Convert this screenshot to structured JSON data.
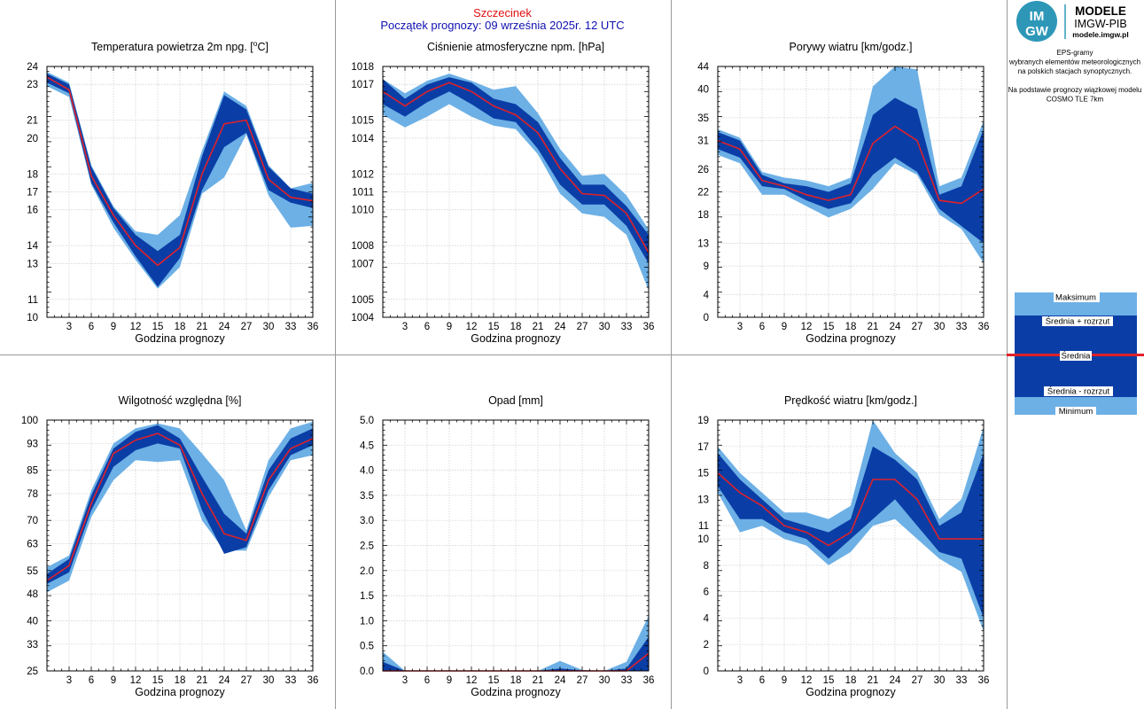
{
  "header": {
    "station": "Szczecinek",
    "forecast_start": "Początek prognozy: 09 września 2025r. 12 UTC"
  },
  "logo": {
    "badge_top": "IM",
    "badge_bottom": "GW",
    "line1": "MODELE",
    "line2": "IMGW-PIB",
    "line3": "modele.imgw.pl"
  },
  "info": {
    "lines": [
      "EPS-gramy",
      "wybranych elementów meteorologicznych",
      "na polskich stacjach  synoptycznych.",
      "",
      "Na podstawie prognozy wiązkowej modelu",
      "COSMO TLE 7km"
    ]
  },
  "legend": {
    "max": "Maksimum",
    "mean_plus": "Średnia + rozrzut",
    "mean": "Średnia",
    "mean_minus": "Średnia - rozrzut",
    "min": "Minimum"
  },
  "colors": {
    "extreme_band": "#6cb0e6",
    "spread_band": "#0a3ea6",
    "mean_line": "#e0202a",
    "grid": "#cccccc",
    "divider": "#999999"
  },
  "chart_data": [
    {
      "type": "area",
      "title": "Temperatura powietrza 2m npg. [°C]",
      "title_html": [
        "Temperatura powietrza 2m npg. [",
        "o",
        "C]"
      ],
      "xlabel": "Godzina prognozy",
      "ylabel": "",
      "ylim": [
        10,
        24
      ],
      "yticks": [
        10,
        11,
        13,
        14,
        16,
        17,
        18,
        20,
        21,
        23,
        24
      ],
      "x": [
        0,
        3,
        6,
        9,
        12,
        15,
        18,
        21,
        24,
        27,
        30,
        33,
        36
      ],
      "xticks": [
        3,
        6,
        9,
        12,
        15,
        18,
        21,
        24,
        27,
        30,
        33,
        36
      ],
      "max": [
        23.7,
        23.1,
        18.5,
        16.2,
        14.8,
        14.6,
        15.7,
        19.3,
        22.6,
        21.8,
        18.5,
        17.2,
        17.5
      ],
      "mean_plus": [
        23.6,
        23.0,
        18.4,
        16.1,
        14.6,
        13.7,
        14.6,
        19.0,
        22.4,
        21.6,
        18.4,
        17.2,
        16.9
      ],
      "mean": [
        23.4,
        22.7,
        17.9,
        15.7,
        14.0,
        12.9,
        13.9,
        18.0,
        20.8,
        21.0,
        17.7,
        16.7,
        16.5
      ],
      "mean_minus": [
        23.1,
        22.5,
        17.5,
        15.3,
        13.4,
        11.7,
        13.3,
        17.1,
        19.5,
        20.3,
        17.1,
        16.4,
        16.1
      ],
      "min": [
        22.9,
        22.3,
        17.4,
        15.0,
        13.2,
        11.6,
        12.8,
        16.9,
        17.8,
        20.2,
        16.8,
        15.0,
        15.1
      ]
    },
    {
      "type": "area",
      "title": "Ciśnienie atmosferyczne npm. [hPa]",
      "xlabel": "Godzina prognozy",
      "ylabel": "",
      "ylim": [
        1004,
        1018
      ],
      "yticks": [
        1004,
        1005,
        1007,
        1008,
        1010,
        1011,
        1012,
        1014,
        1015,
        1017,
        1018
      ],
      "x": [
        0,
        3,
        6,
        9,
        12,
        15,
        18,
        21,
        24,
        27,
        30,
        33,
        36
      ],
      "xticks": [
        3,
        6,
        9,
        12,
        15,
        18,
        21,
        24,
        27,
        30,
        33,
        36
      ],
      "max": [
        1017.3,
        1016.5,
        1017.2,
        1017.6,
        1017.2,
        1016.7,
        1016.9,
        1015.4,
        1013.4,
        1011.9,
        1012.0,
        1010.8,
        1008.9
      ],
      "mean_plus": [
        1017.3,
        1016.2,
        1017.0,
        1017.4,
        1017.1,
        1016.2,
        1015.9,
        1014.9,
        1012.9,
        1011.4,
        1011.4,
        1010.2,
        1008.6
      ],
      "mean": [
        1016.6,
        1015.8,
        1016.6,
        1017.1,
        1016.6,
        1015.8,
        1015.3,
        1014.3,
        1012.3,
        1010.9,
        1010.8,
        1009.8,
        1007.6
      ],
      "mean_minus": [
        1015.9,
        1015.2,
        1016.0,
        1016.6,
        1015.9,
        1015.1,
        1014.9,
        1013.4,
        1011.4,
        1010.3,
        1010.3,
        1009.1,
        1007.0
      ],
      "min": [
        1015.3,
        1014.6,
        1015.2,
        1015.9,
        1015.2,
        1014.7,
        1014.5,
        1013.1,
        1010.9,
        1009.8,
        1009.6,
        1008.6,
        1005.5
      ]
    },
    {
      "type": "area",
      "title": "Porywy wiatru [km/godz.]",
      "xlabel": "Godzina prognozy",
      "ylabel": "",
      "ylim": [
        0,
        44
      ],
      "yticks": [
        0,
        4,
        9,
        13,
        18,
        22,
        26,
        31,
        35,
        40,
        44
      ],
      "x": [
        0,
        3,
        6,
        9,
        12,
        15,
        18,
        21,
        24,
        27,
        30,
        33,
        36
      ],
      "xticks": [
        3,
        6,
        9,
        12,
        15,
        18,
        21,
        24,
        27,
        30,
        33,
        36
      ],
      "max": [
        33.0,
        31.5,
        25.5,
        24.5,
        24.0,
        23.0,
        24.5,
        40.5,
        44.0,
        43.5,
        23.0,
        24.5,
        34.5
      ],
      "mean_plus": [
        32.5,
        31.0,
        25.0,
        23.5,
        23.0,
        22.0,
        23.5,
        35.5,
        38.5,
        36.5,
        21.5,
        23.0,
        33.0
      ],
      "mean": [
        31.0,
        29.5,
        24.0,
        23.0,
        21.5,
        20.5,
        21.5,
        30.5,
        33.5,
        31.0,
        20.5,
        20.0,
        22.5
      ],
      "mean_minus": [
        29.5,
        28.0,
        23.0,
        22.5,
        20.5,
        19.0,
        20.0,
        25.0,
        28.0,
        25.5,
        19.0,
        16.0,
        13.0
      ],
      "min": [
        28.5,
        27.0,
        21.5,
        21.5,
        19.5,
        17.5,
        19.0,
        22.5,
        27.0,
        25.0,
        18.0,
        15.5,
        9.5
      ]
    },
    {
      "type": "area",
      "title": "Wilgotność względna [%]",
      "xlabel": "Godzina prognozy",
      "ylabel": "",
      "ylim": [
        25,
        100
      ],
      "yticks": [
        25,
        33,
        40,
        48,
        55,
        63,
        70,
        78,
        85,
        93,
        100
      ],
      "x": [
        0,
        3,
        6,
        9,
        12,
        15,
        18,
        21,
        24,
        27,
        30,
        33,
        36
      ],
      "xticks": [
        3,
        6,
        9,
        12,
        15,
        18,
        21,
        24,
        27,
        30,
        33,
        36
      ],
      "max": [
        56.0,
        59.5,
        79.0,
        93.0,
        97.5,
        99.0,
        97.5,
        90.0,
        82.0,
        67.0,
        88.0,
        97.5,
        99.5
      ],
      "mean_plus": [
        54.0,
        58.5,
        77.5,
        91.5,
        96.5,
        98.5,
        94.5,
        83.0,
        72.0,
        66.0,
        85.0,
        94.5,
        97.5
      ],
      "mean": [
        52.0,
        56.5,
        75.0,
        90.0,
        94.0,
        96.0,
        92.5,
        78.0,
        66.0,
        64.0,
        82.0,
        91.5,
        94.5
      ],
      "mean_minus": [
        51.0,
        54.5,
        73.0,
        86.0,
        91.0,
        93.0,
        91.5,
        73.0,
        60.0,
        62.0,
        79.0,
        89.5,
        92.5
      ],
      "min": [
        48.5,
        52.0,
        71.0,
        82.0,
        88.0,
        87.5,
        88.0,
        70.0,
        61.0,
        61.0,
        77.0,
        88.0,
        89.5
      ]
    },
    {
      "type": "area",
      "title": "Opad [mm]",
      "xlabel": "Godzina prognozy",
      "ylabel": "",
      "ylim": [
        0,
        5
      ],
      "yticks": [
        0.0,
        0.5,
        1.0,
        1.5,
        2.0,
        2.5,
        3.0,
        3.5,
        4.0,
        4.5,
        5.0
      ],
      "x": [
        0,
        3,
        6,
        9,
        12,
        15,
        18,
        21,
        24,
        27,
        30,
        33,
        36
      ],
      "xticks": [
        3,
        6,
        9,
        12,
        15,
        18,
        21,
        24,
        27,
        30,
        33,
        36
      ],
      "max": [
        0.38,
        0.0,
        0.0,
        0.0,
        0.0,
        0.0,
        0.0,
        0.0,
        0.2,
        0.02,
        0.0,
        0.18,
        1.1
      ],
      "mean_plus": [
        0.18,
        0.0,
        0.0,
        0.0,
        0.0,
        0.0,
        0.0,
        0.0,
        0.05,
        0.01,
        0.0,
        0.05,
        0.68
      ],
      "mean": [
        0.0,
        0.0,
        0.0,
        0.0,
        0.0,
        0.0,
        0.0,
        0.0,
        0.0,
        0.0,
        0.0,
        0.0,
        0.35
      ],
      "mean_minus": [
        0.0,
        0.0,
        0.0,
        0.0,
        0.0,
        0.0,
        0.0,
        0.0,
        0.0,
        0.0,
        0.0,
        0.0,
        0.0
      ],
      "min": [
        0.0,
        0.0,
        0.0,
        0.0,
        0.0,
        0.0,
        0.0,
        0.0,
        0.0,
        0.0,
        0.0,
        0.0,
        0.0
      ]
    },
    {
      "type": "area",
      "title": "Prędkość wiatru [km/godz.]",
      "xlabel": "Godzina prognozy",
      "ylabel": "",
      "ylim": [
        0,
        19
      ],
      "yticks": [
        0,
        2,
        4,
        6,
        8,
        10,
        11,
        13,
        15,
        17,
        19
      ],
      "x": [
        0,
        3,
        6,
        9,
        12,
        15,
        18,
        21,
        24,
        27,
        30,
        33,
        36
      ],
      "xticks": [
        3,
        6,
        9,
        12,
        15,
        18,
        21,
        24,
        27,
        30,
        33,
        36
      ],
      "max": [
        17.0,
        15.0,
        13.5,
        12.0,
        12.0,
        11.5,
        12.5,
        19.0,
        16.5,
        15.0,
        11.5,
        13.0,
        18.5
      ],
      "mean_plus": [
        16.5,
        14.5,
        13.0,
        11.5,
        11.0,
        10.5,
        11.5,
        17.0,
        16.0,
        14.5,
        11.0,
        12.0,
        16.5
      ],
      "mean": [
        15.0,
        13.5,
        12.5,
        11.0,
        10.5,
        9.5,
        10.5,
        14.5,
        14.5,
        13.0,
        10.0,
        10.0,
        10.0
      ],
      "mean_minus": [
        14.0,
        11.5,
        11.5,
        10.5,
        10.0,
        8.5,
        10.0,
        11.5,
        13.0,
        11.0,
        9.0,
        8.5,
        4.0
      ],
      "min": [
        13.5,
        10.5,
        11.0,
        10.0,
        9.5,
        8.0,
        9.0,
        11.0,
        11.5,
        10.0,
        8.5,
        7.5,
        3.0
      ]
    }
  ]
}
